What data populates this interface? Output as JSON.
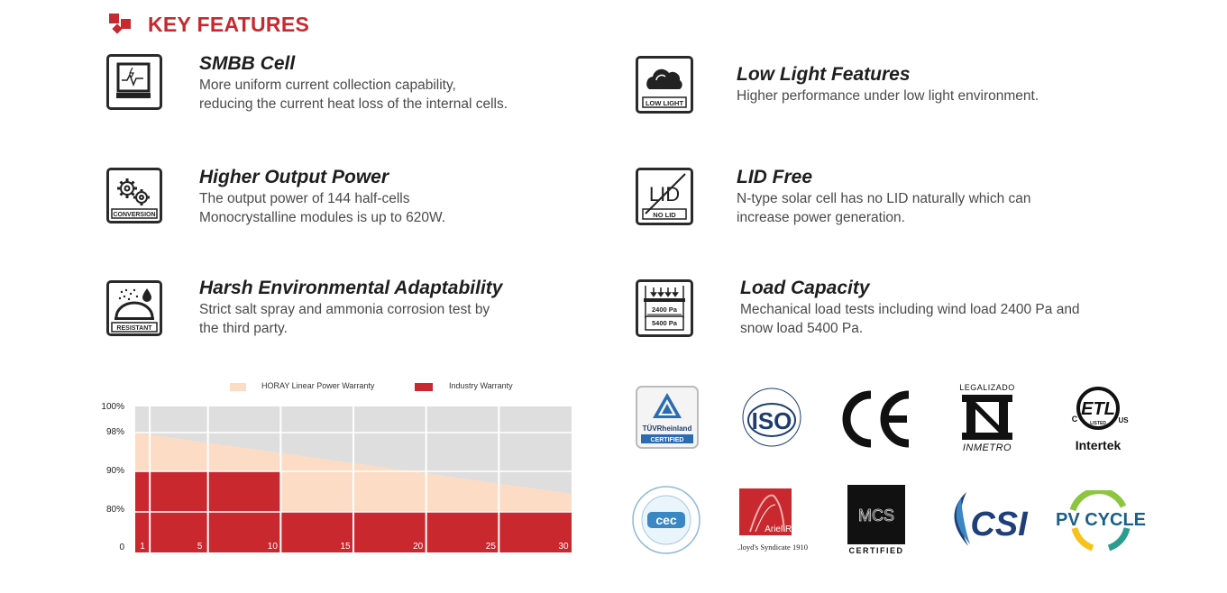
{
  "header": {
    "title": "KEY FEATURES"
  },
  "features": [
    {
      "title": "SMBB Cell",
      "desc": [
        "More uniform current collection capability,",
        "reducing the current heat loss of the internal cells."
      ]
    },
    {
      "title": "Low Light Features",
      "desc": [
        "Higher performance under low light environment."
      ],
      "icon_label": "LOW LIGHT"
    },
    {
      "title": "Higher Output Power",
      "desc": [
        "The output power of 144 half-cells",
        "Monocrystalline modules is up to 620W."
      ],
      "icon_label": "CONVERSION"
    },
    {
      "title": "LID Free",
      "desc": [
        "N-type solar cell has no LID naturally which can",
        "increase power generation."
      ],
      "icon_label": "NO LID",
      "icon_text": "LID"
    },
    {
      "title": "Harsh Environmental Adaptability",
      "desc": [
        "Strict salt spray and ammonia corrosion test by",
        "the third party."
      ],
      "icon_label": "RESISTANT"
    },
    {
      "title": "Load Capacity",
      "desc": [
        "Mechanical load tests including wind load 2400 Pa and",
        "snow load 5400 Pa."
      ],
      "icon_label_1": "2400 Pa",
      "icon_label_2": "5400 Pa"
    }
  ],
  "chart_data": {
    "type": "area",
    "series": [
      {
        "name": "HORAY Linear Power Warranty",
        "color": "#fddcc6",
        "points": [
          [
            0,
            98
          ],
          [
            30,
            84.5
          ]
        ]
      },
      {
        "name": "Industry Warranty",
        "color": "#c8282e",
        "steps": [
          [
            0,
            10,
            90
          ],
          [
            10,
            30,
            80
          ]
        ]
      }
    ],
    "x_ticks": [
      "1",
      "5",
      "10",
      "15",
      "20",
      "25",
      "30"
    ],
    "x_tick_values": [
      1,
      5,
      10,
      15,
      20,
      25,
      30
    ],
    "y_ticks": [
      "100%",
      "98%",
      "90%",
      "80%",
      "0"
    ],
    "xlim": [
      0,
      30
    ],
    "background_color": "#dedede"
  },
  "certifications": {
    "tuv": {
      "line1": "TÜVRheinland",
      "line2": "CERTIFIED"
    },
    "iso": {
      "text": "ISO",
      "ring": "International Organization for Standardization"
    },
    "ce": {
      "text": "CE"
    },
    "inmetro": {
      "top": "LEGALIZADO",
      "bottom": "INMETRO"
    },
    "etl": {
      "c": "C",
      "mark": "ETL",
      "listed": "LISTED",
      "us": "US",
      "bottom": "Intertek"
    },
    "cec": {
      "text": "cec"
    },
    "ariel": {
      "brand": "Ariel Re",
      "caption": "Lloyd's Syndicate 1910"
    },
    "mcs": {
      "text": "MCS",
      "caption": "CERTIFIED"
    },
    "csi": {
      "text": "CSI"
    },
    "pvcycle": {
      "text": "PV CYCLE"
    }
  }
}
